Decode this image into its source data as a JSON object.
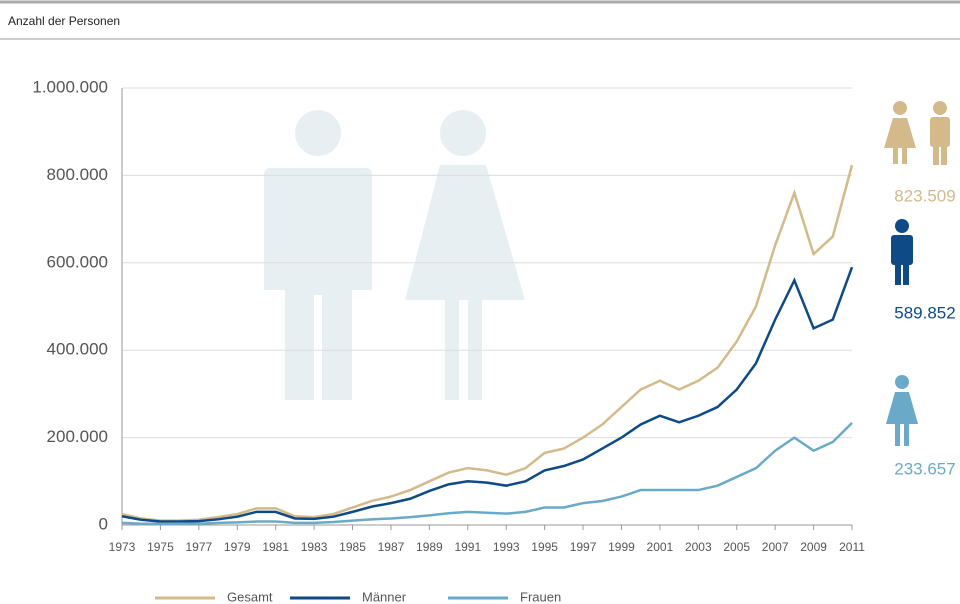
{
  "chart_data": {
    "type": "line",
    "title": "Anzahl der Personen",
    "x": [
      1973,
      1974,
      1975,
      1976,
      1977,
      1978,
      1979,
      1980,
      1981,
      1982,
      1983,
      1984,
      1985,
      1986,
      1987,
      1988,
      1989,
      1990,
      1991,
      1992,
      1993,
      1994,
      1995,
      1996,
      1997,
      1998,
      1999,
      2000,
      2001,
      2002,
      2003,
      2004,
      2005,
      2006,
      2007,
      2008,
      2009,
      2010,
      2011
    ],
    "series": [
      {
        "name": "Gesamt",
        "color": "#d4b98a",
        "end_label": "823.509",
        "values": [
          25000,
          15000,
          10000,
          10000,
          12000,
          18000,
          25000,
          38000,
          38000,
          20000,
          18000,
          25000,
          40000,
          55000,
          65000,
          80000,
          100000,
          120000,
          130000,
          125000,
          115000,
          130000,
          165000,
          175000,
          200000,
          230000,
          270000,
          310000,
          330000,
          310000,
          330000,
          360000,
          420000,
          500000,
          640000,
          760000,
          620000,
          660000,
          823509
        ]
      },
      {
        "name": "Männer",
        "color": "#0d4a86",
        "end_label": "589.852",
        "values": [
          20000,
          12000,
          8000,
          8000,
          9000,
          13000,
          19000,
          30000,
          30000,
          15000,
          14000,
          19000,
          30000,
          42000,
          50000,
          60000,
          78000,
          93000,
          100000,
          97000,
          90000,
          100000,
          125000,
          135000,
          150000,
          175000,
          200000,
          230000,
          250000,
          235000,
          250000,
          270000,
          310000,
          370000,
          470000,
          560000,
          450000,
          470000,
          589852
        ]
      },
      {
        "name": "Frauen",
        "color": "#6aaac8",
        "end_label": "233.657",
        "values": [
          5000,
          3000,
          3000,
          3000,
          3000,
          5000,
          6000,
          8000,
          8000,
          5000,
          5000,
          7000,
          10000,
          13000,
          15000,
          18000,
          22000,
          27000,
          30000,
          28000,
          26000,
          30000,
          40000,
          40000,
          50000,
          55000,
          65000,
          80000,
          80000,
          80000,
          80000,
          90000,
          110000,
          130000,
          170000,
          200000,
          170000,
          190000,
          233657
        ]
      }
    ],
    "xlim": [
      1973,
      2011
    ],
    "xticks": [
      1973,
      1975,
      1977,
      1979,
      1981,
      1983,
      1985,
      1987,
      1989,
      1991,
      1993,
      1995,
      1997,
      1999,
      2001,
      2003,
      2005,
      2007,
      2009,
      2011
    ],
    "ylim": [
      0,
      1000000
    ],
    "yticks": [
      0,
      {
        "value": 200000,
        "label": "200.000"
      },
      {
        "value": 400000,
        "label": "400.000"
      },
      {
        "value": 600000,
        "label": "600.000"
      },
      {
        "value": 800000,
        "label": "800.000"
      },
      {
        "value": 1000000,
        "label": "1.000.000"
      }
    ],
    "grid": true
  }
}
